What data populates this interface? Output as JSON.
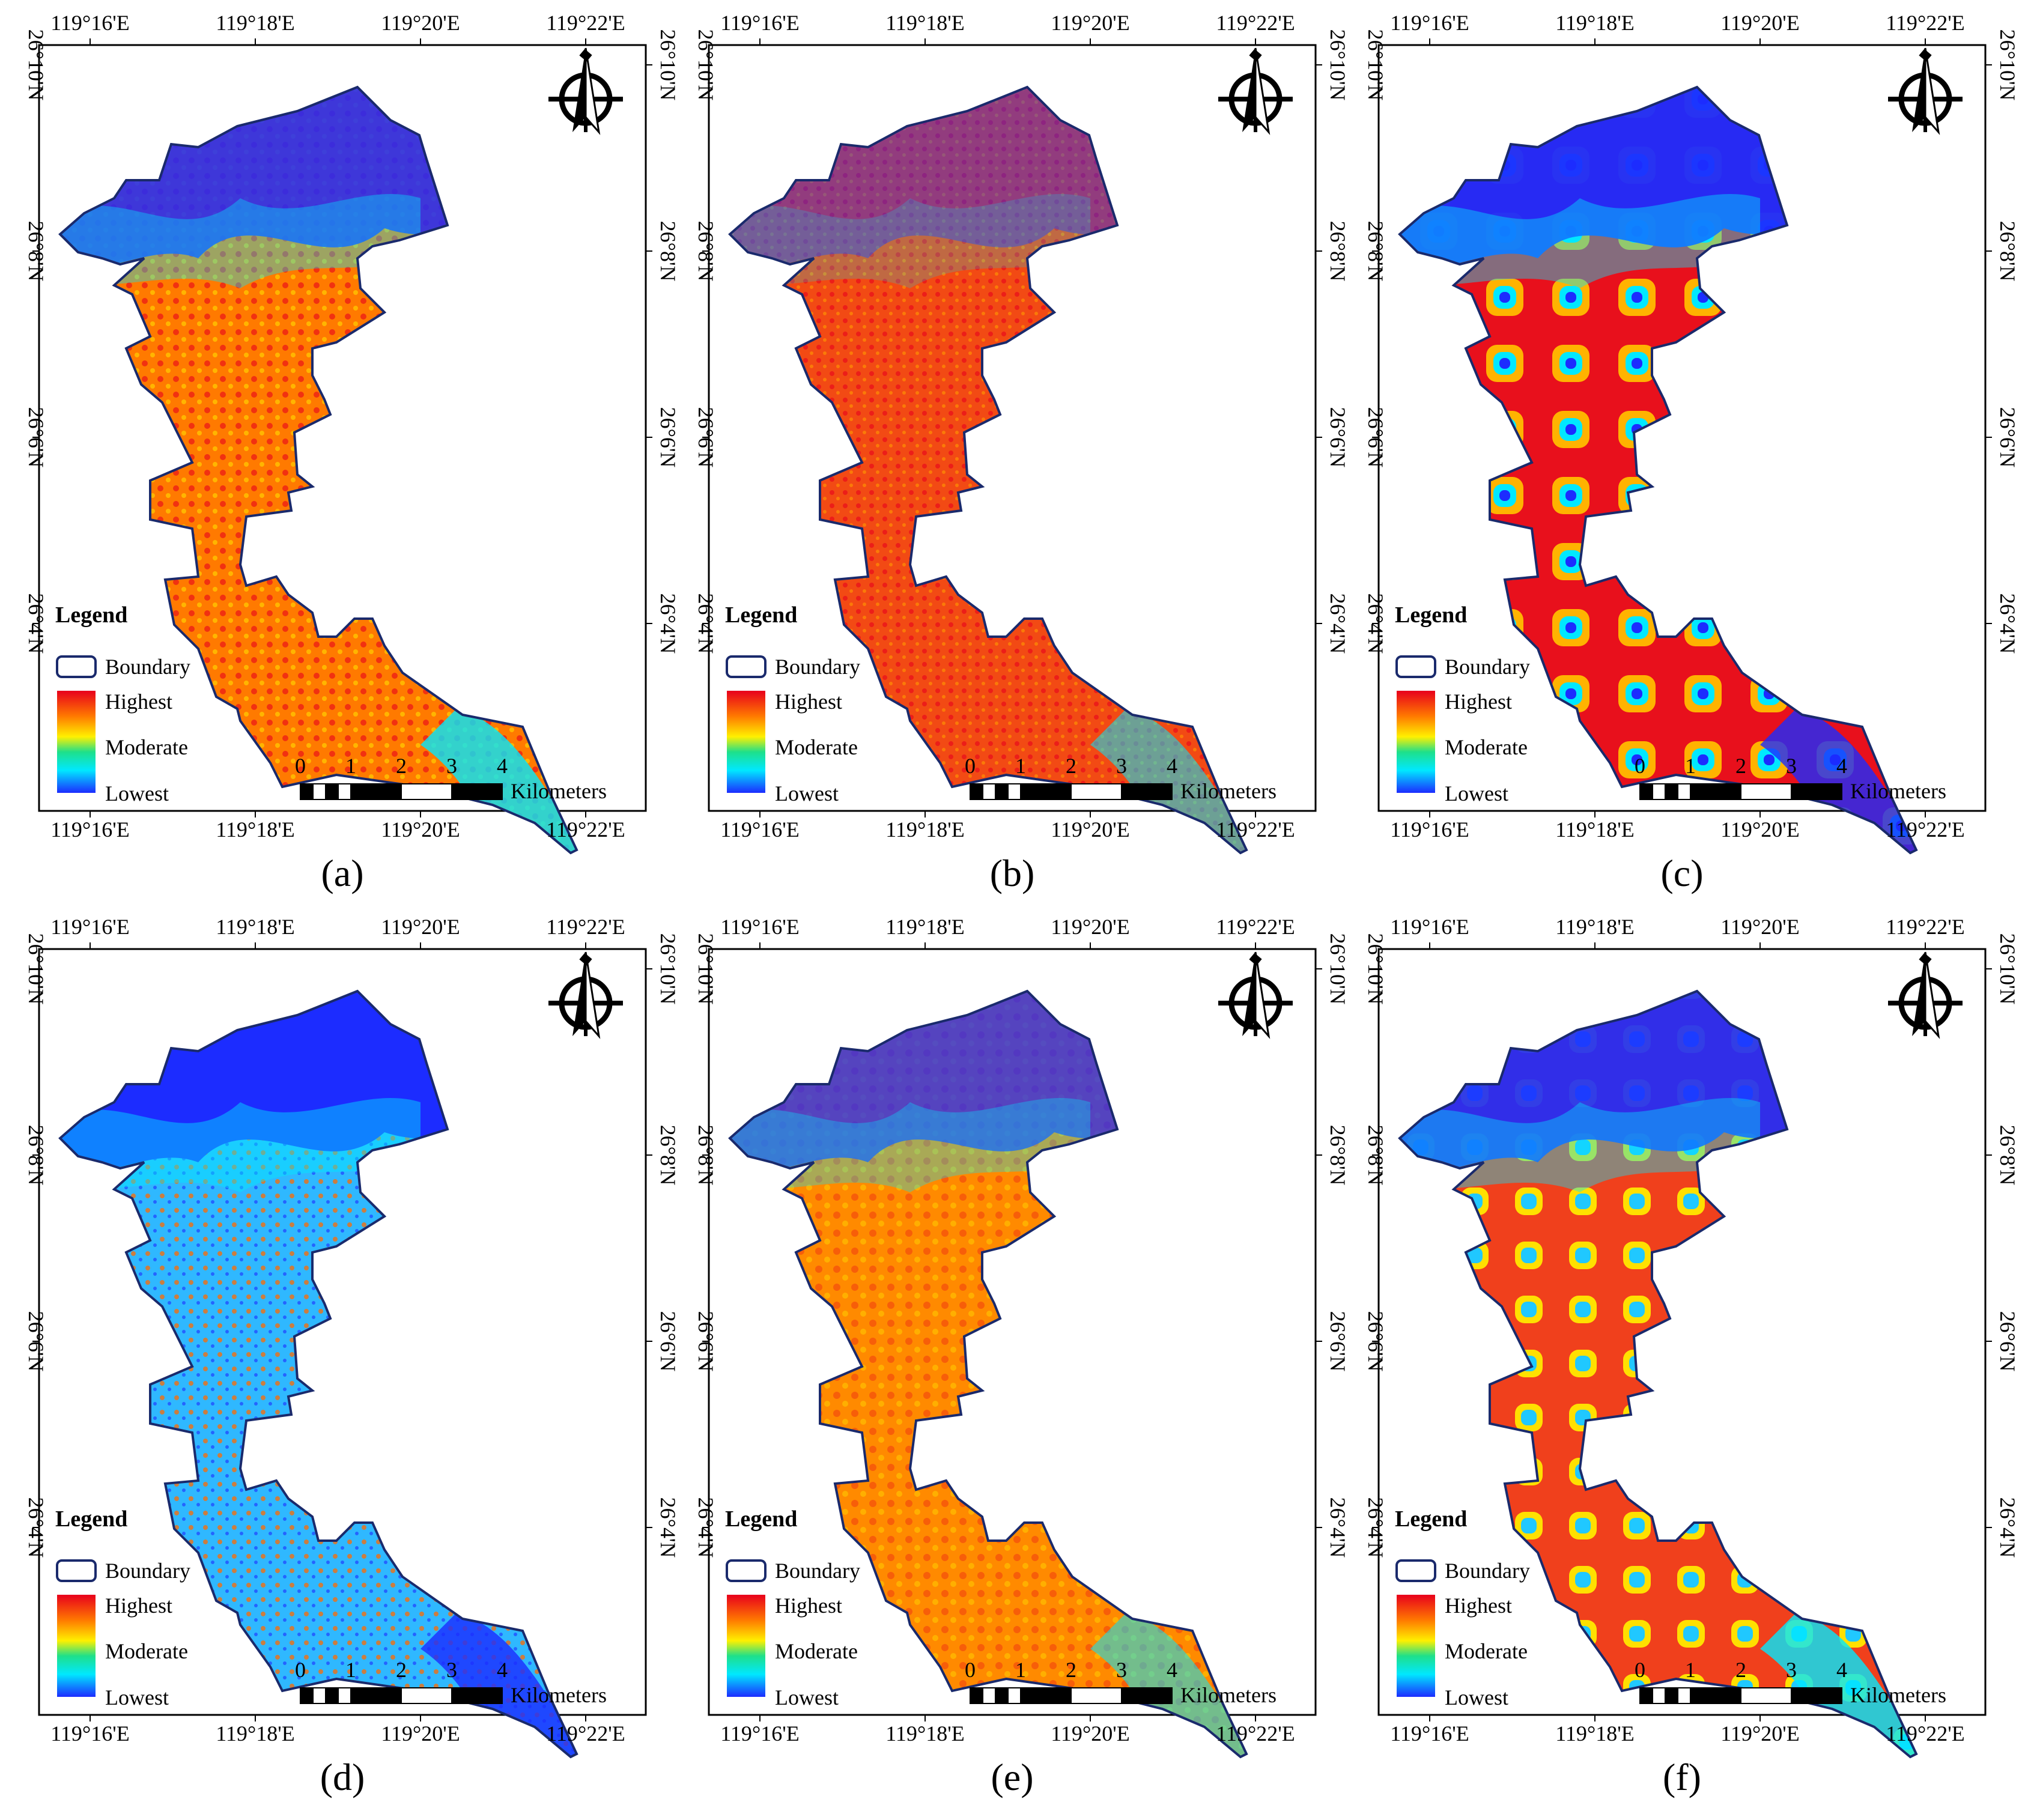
{
  "figure": {
    "panels": [
      {
        "label": "(a)",
        "pattern": "a"
      },
      {
        "label": "(b)",
        "pattern": "b"
      },
      {
        "label": "(c)",
        "pattern": "c"
      },
      {
        "label": "(d)",
        "pattern": "d"
      },
      {
        "label": "(e)",
        "pattern": "e"
      },
      {
        "label": "(f)",
        "pattern": "f"
      }
    ],
    "lon_labels": [
      "119°16'E",
      "119°18'E",
      "119°20'E",
      "119°22'E"
    ],
    "lat_labels": [
      "26°10'N",
      "26°8'N",
      "26°6'N",
      "26°4'N"
    ],
    "legend": {
      "title": "Legend",
      "boundary": "Boundary",
      "highest": "Highest",
      "moderate": "Moderate",
      "lowest": "Lowest"
    },
    "scale_bar": {
      "ticks": [
        "0",
        "1",
        "2",
        "3",
        "4"
      ],
      "unit": "Kilometers"
    },
    "colors": {
      "boundary": "#1a2a6c",
      "highest": "#e8001c",
      "orange": "#ff7a00",
      "yellow": "#fff000",
      "moderate": "#1ee08a",
      "cyan": "#00e8ff",
      "lowest": "#1c2cff"
    },
    "north_arrow_icon": "north-arrow-icon"
  }
}
